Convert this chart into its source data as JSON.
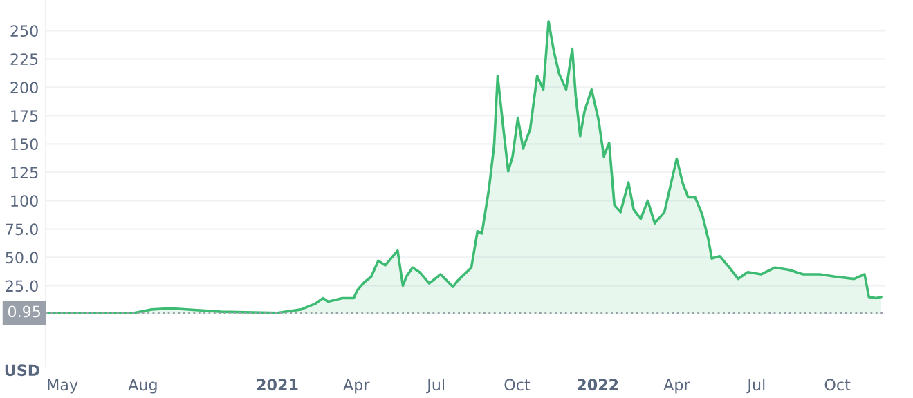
{
  "chart_data": {
    "type": "area",
    "ylabel": "USD",
    "x": [
      "2020-04-12",
      "2020-07-22",
      "2020-08-11",
      "2020-09-01",
      "2020-10-29",
      "2021-01-01",
      "2021-01-28",
      "2021-02-13",
      "2021-02-22",
      "2021-02-28",
      "2021-03-16",
      "2021-03-29",
      "2021-04-02",
      "2021-04-10",
      "2021-04-18",
      "2021-04-26",
      "2021-05-04",
      "2021-05-18",
      "2021-05-24",
      "2021-05-28",
      "2021-06-04",
      "2021-06-12",
      "2021-06-23",
      "2021-07-06",
      "2021-07-20",
      "2021-07-25",
      "2021-08-10",
      "2021-08-17",
      "2021-08-22",
      "2021-08-30",
      "2021-09-05",
      "2021-09-09",
      "2021-09-15",
      "2021-09-21",
      "2021-09-26",
      "2021-10-02",
      "2021-10-08",
      "2021-10-16",
      "2021-10-24",
      "2021-10-31",
      "2021-11-06",
      "2021-11-12",
      "2021-11-18",
      "2021-11-26",
      "2021-12-03",
      "2021-12-07",
      "2021-12-12",
      "2021-12-17",
      "2021-12-25",
      "2022-01-02",
      "2022-01-08",
      "2022-01-14",
      "2022-01-20",
      "2022-01-27",
      "2022-02-05",
      "2022-02-11",
      "2022-02-19",
      "2022-02-27",
      "2022-03-07",
      "2022-03-18",
      "2022-04-01",
      "2022-04-08",
      "2022-04-14",
      "2022-04-22",
      "2022-04-30",
      "2022-05-07",
      "2022-05-11",
      "2022-05-20",
      "2022-05-31",
      "2022-06-10",
      "2022-06-21",
      "2022-07-06",
      "2022-07-22",
      "2022-08-07",
      "2022-08-23",
      "2022-09-11",
      "2022-09-28",
      "2022-10-20",
      "2022-11-01",
      "2022-11-06",
      "2022-11-14",
      "2022-11-20"
    ],
    "series": [
      {
        "color": "#3dbb73",
        "values": [
          1,
          1,
          4,
          5,
          2,
          1,
          4,
          9,
          14,
          11,
          14,
          14,
          21,
          28,
          33,
          47,
          43,
          56,
          25,
          33,
          41,
          37,
          27,
          35,
          24,
          29,
          41,
          73,
          71,
          110,
          149,
          210,
          167,
          126,
          139,
          173,
          146,
          163,
          210,
          198,
          258,
          232,
          212,
          198,
          234,
          192,
          157,
          179,
          198,
          171,
          139,
          151,
          96,
          90,
          116,
          92,
          84,
          100,
          80,
          90,
          137,
          115,
          103,
          103,
          88,
          66,
          49,
          51,
          41,
          31,
          37,
          35,
          41,
          39,
          35,
          35,
          33,
          31,
          35,
          15,
          14,
          15
        ]
      }
    ],
    "xlim": [
      "2020-04-12",
      "2022-11-25"
    ],
    "xticks": [
      {
        "value": "2020-05-01",
        "label": "May"
      },
      {
        "value": "2020-08-01",
        "label": "Aug"
      },
      {
        "value": "2021-01-01",
        "label": "2021"
      },
      {
        "value": "2021-04-01",
        "label": "Apr"
      },
      {
        "value": "2021-07-01",
        "label": "Jul"
      },
      {
        "value": "2021-10-01",
        "label": "Oct"
      },
      {
        "value": "2022-01-01",
        "label": "2022"
      },
      {
        "value": "2022-04-01",
        "label": "Apr"
      },
      {
        "value": "2022-07-01",
        "label": "Jul"
      },
      {
        "value": "2022-10-01",
        "label": "Oct"
      }
    ],
    "ylim": [
      -46,
      277
    ],
    "yticks": [
      {
        "value": 25,
        "label": "25.0"
      },
      {
        "value": 50,
        "label": "50.0"
      },
      {
        "value": 75,
        "label": "75.0"
      },
      100,
      125,
      150,
      175,
      200,
      225,
      250
    ],
    "ref_lines": [
      {
        "axis": "y",
        "value": 0.95,
        "label": "0.95",
        "color": "#9aa0aa",
        "line_style": "dotted"
      }
    ],
    "grid": "y",
    "line_style": "solid",
    "marker": "none"
  }
}
